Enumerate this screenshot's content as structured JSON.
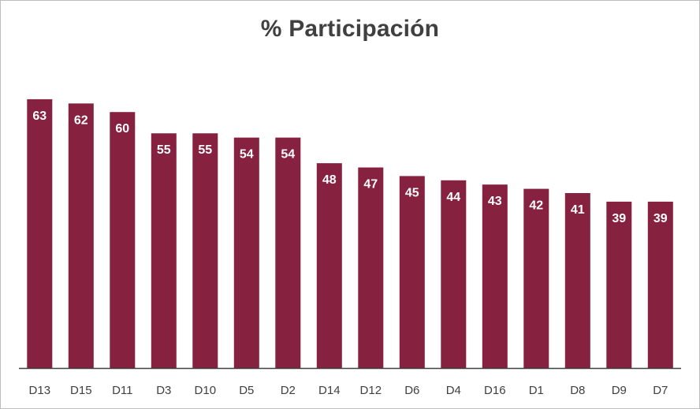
{
  "chart_data": {
    "type": "bar",
    "title": "% Participación",
    "xlabel": "",
    "ylabel": "",
    "ylim": [
      0,
      70
    ],
    "grid": false,
    "legend": "none",
    "bar_color": "#86213F",
    "label_color": "#FFFFFF",
    "axis_color": "#404040",
    "categories": [
      "D13",
      "D15",
      "D11",
      "D3",
      "D10",
      "D5",
      "D2",
      "D14",
      "D12",
      "D6",
      "D4",
      "D16",
      "D1",
      "D8",
      "D9",
      "D7"
    ],
    "values": [
      63,
      62,
      60,
      55,
      55,
      54,
      54,
      48,
      47,
      45,
      44,
      43,
      42,
      41,
      39,
      39
    ]
  }
}
